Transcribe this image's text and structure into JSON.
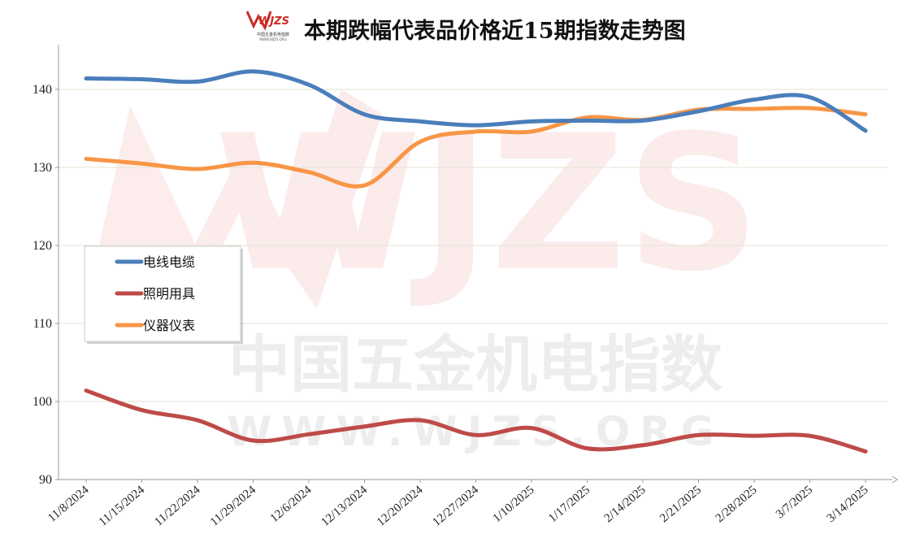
{
  "chart_data": {
    "type": "line",
    "title": "本期跌幅代表品价格近15期指数走势图",
    "logo": {
      "brand": "WJZS",
      "caption": "中国五金机电指数",
      "url": "WWW.WJZS.ORG"
    },
    "watermark": {
      "brand": "WJZS",
      "text": "中国五金机电指数",
      "url": "WWW.WJZS.ORG"
    },
    "categories": [
      "11/8/2024",
      "11/15/2024",
      "11/22/2024",
      "11/29/2024",
      "12/6/2024",
      "12/13/2024",
      "12/20/2024",
      "12/27/2024",
      "1/10/2025",
      "1/17/2025",
      "2/14/2025",
      "2/21/2025",
      "2/28/2025",
      "3/7/2025",
      "3/14/2025"
    ],
    "ylim": [
      90,
      145
    ],
    "yticks": [
      90,
      100,
      110,
      120,
      130,
      140
    ],
    "grid": true,
    "legend_position": "left-middle",
    "series": [
      {
        "name": "电线电缆",
        "color": "#4a7ebb",
        "values": [
          141.4,
          141.3,
          141.0,
          142.3,
          140.6,
          136.8,
          135.9,
          135.4,
          135.9,
          136.0,
          136.0,
          137.2,
          138.7,
          139.0,
          134.7
        ]
      },
      {
        "name": "照明用具",
        "color": "#be4b48",
        "values": [
          101.4,
          98.9,
          97.6,
          95.0,
          95.8,
          96.8,
          97.6,
          95.7,
          96.6,
          94.0,
          94.4,
          95.7,
          95.6,
          95.6,
          93.6
        ]
      },
      {
        "name": "仪器仪表",
        "color": "#f79646",
        "values": [
          131.1,
          130.5,
          129.8,
          130.6,
          129.4,
          127.7,
          133.3,
          134.6,
          134.6,
          136.4,
          136.1,
          137.4,
          137.5,
          137.6,
          136.8
        ]
      }
    ]
  }
}
